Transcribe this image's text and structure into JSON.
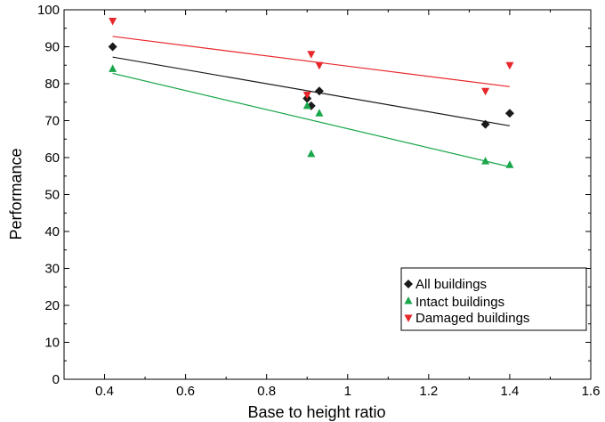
{
  "chart_data": {
    "type": "scatter",
    "xlabel": "Base to height ratio",
    "ylabel": "Performance",
    "xlim": [
      0.3,
      1.6
    ],
    "ylim": [
      0,
      100
    ],
    "xticks": [
      "0.4",
      "0.6",
      "0.8",
      "1",
      "1.2",
      "1.4",
      "1.6"
    ],
    "yticks": [
      "0",
      "10",
      "20",
      "30",
      "40",
      "50",
      "60",
      "70",
      "80",
      "90",
      "100"
    ],
    "grid": false,
    "legend_position": "bottom-right",
    "series": [
      {
        "name": "All buildings",
        "marker": "diamond",
        "color": "#1a1a1a",
        "points": [
          [
            0.42,
            90
          ],
          [
            0.9,
            76
          ],
          [
            0.91,
            74
          ],
          [
            0.93,
            78
          ],
          [
            1.34,
            69
          ],
          [
            1.4,
            72
          ]
        ],
        "trend": [
          [
            0.42,
            87.2
          ],
          [
            1.4,
            68.6
          ]
        ]
      },
      {
        "name": "Intact buildings",
        "marker": "triangle-up",
        "color": "#1aa64a",
        "points": [
          [
            0.42,
            84
          ],
          [
            0.9,
            74
          ],
          [
            0.91,
            61
          ],
          [
            0.93,
            72
          ],
          [
            1.34,
            59
          ],
          [
            1.4,
            58
          ]
        ],
        "trend": [
          [
            0.42,
            82.8
          ],
          [
            1.4,
            57.5
          ]
        ]
      },
      {
        "name": "Damaged buildings",
        "marker": "triangle-down",
        "color": "#e8262a",
        "points": [
          [
            0.42,
            97
          ],
          [
            0.9,
            77
          ],
          [
            0.91,
            88
          ],
          [
            0.93,
            85
          ],
          [
            1.34,
            78
          ],
          [
            1.4,
            85
          ]
        ],
        "trend": [
          [
            0.42,
            92.8
          ],
          [
            1.4,
            79.2
          ]
        ]
      }
    ]
  }
}
